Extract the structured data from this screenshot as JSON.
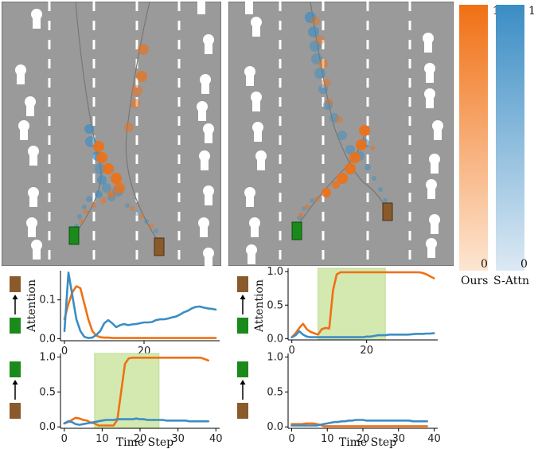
{
  "colors": {
    "ours": "#f07014",
    "s_attn": "#3b8dc4",
    "ego": "#1a8a1a",
    "other": "#8b5a2b",
    "road": "#9a9a9a",
    "highlight": "#cfe7a8"
  },
  "colorbar": {
    "ours_label": "Ours",
    "s_attn_label": "S-Attn",
    "ours_max": "1",
    "ours_min": "0",
    "s_attn_max": "1",
    "s_attn_min": "0"
  },
  "chart_data": [
    {
      "type": "line",
      "panel": "top-left",
      "ylabel": "Attention",
      "xlabel": "",
      "xlim": [
        -1,
        39
      ],
      "ylim": [
        -0.005,
        0.175
      ],
      "xticks": [
        "0",
        "20"
      ],
      "yticks": [
        "0.0",
        "0.1"
      ],
      "ytick_values": [
        0.0,
        0.1
      ],
      "xtick_values": [
        0,
        20
      ],
      "highlight": null,
      "series": [
        {
          "name": "Ours",
          "x": [
            0,
            1,
            2,
            3,
            4,
            5,
            6,
            7,
            8,
            9,
            10,
            11,
            12,
            13,
            14,
            15,
            16,
            17,
            18,
            19,
            20,
            21,
            22,
            23,
            24,
            25,
            26,
            27,
            28,
            29,
            30,
            31,
            32,
            33,
            34,
            35,
            36,
            37,
            38
          ],
          "values": [
            0.05,
            0.09,
            0.12,
            0.135,
            0.13,
            0.09,
            0.05,
            0.02,
            0.008,
            0.004,
            0.003,
            0.003,
            0.002,
            0.002,
            0.002,
            0.002,
            0.002,
            0.002,
            0.002,
            0.002,
            0.002,
            0.002,
            0.002,
            0.002,
            0.002,
            0.002,
            0.002,
            0.002,
            0.002,
            0.002,
            0.002,
            0.002,
            0.002,
            0.002,
            0.002,
            0.002,
            0.002,
            0.002,
            0.002
          ]
        },
        {
          "name": "S-Attn",
          "x": [
            0,
            1,
            2,
            3,
            4,
            5,
            6,
            7,
            8,
            9,
            10,
            11,
            12,
            13,
            14,
            15,
            16,
            17,
            18,
            19,
            20,
            21,
            22,
            23,
            24,
            25,
            26,
            27,
            28,
            29,
            30,
            31,
            32,
            33,
            34,
            35,
            36,
            37,
            38
          ],
          "values": [
            0.02,
            0.17,
            0.11,
            0.05,
            0.02,
            0.005,
            0.002,
            0.003,
            0.01,
            0.02,
            0.04,
            0.048,
            0.04,
            0.03,
            0.035,
            0.038,
            0.035,
            0.037,
            0.038,
            0.04,
            0.042,
            0.042,
            0.043,
            0.048,
            0.05,
            0.05,
            0.052,
            0.055,
            0.057,
            0.062,
            0.068,
            0.072,
            0.078,
            0.082,
            0.083,
            0.08,
            0.078,
            0.077,
            0.075
          ]
        }
      ]
    },
    {
      "type": "line",
      "panel": "top-right",
      "ylabel": "Attention",
      "xlabel": "",
      "xlim": [
        -1,
        39
      ],
      "ylim": [
        -0.02,
        1.05
      ],
      "xticks": [
        "0",
        "20"
      ],
      "yticks": [
        "0.0",
        "0.5",
        "1.0"
      ],
      "ytick_values": [
        0.0,
        0.5,
        1.0
      ],
      "xtick_values": [
        0,
        20
      ],
      "highlight": [
        7,
        25
      ],
      "series": [
        {
          "name": "Ours",
          "x": [
            0,
            1,
            2,
            3,
            4,
            5,
            6,
            7,
            8,
            9,
            10,
            11,
            12,
            13,
            14,
            15,
            16,
            17,
            18,
            19,
            20,
            21,
            22,
            23,
            24,
            25,
            26,
            27,
            28,
            29,
            30,
            31,
            32,
            33,
            34,
            35,
            36,
            37,
            38
          ],
          "values": [
            0.02,
            0.08,
            0.16,
            0.22,
            0.14,
            0.1,
            0.08,
            0.06,
            0.14,
            0.16,
            0.15,
            0.72,
            0.96,
            0.99,
            0.99,
            0.99,
            0.99,
            0.99,
            0.99,
            0.99,
            0.99,
            0.99,
            0.99,
            0.99,
            0.99,
            0.99,
            0.99,
            0.99,
            0.99,
            0.99,
            0.99,
            0.99,
            0.99,
            0.99,
            0.99,
            0.98,
            0.96,
            0.93,
            0.9
          ]
        },
        {
          "name": "S-Attn",
          "x": [
            0,
            1,
            2,
            3,
            4,
            5,
            6,
            7,
            8,
            9,
            10,
            11,
            12,
            13,
            14,
            15,
            16,
            17,
            18,
            19,
            20,
            21,
            22,
            23,
            24,
            25,
            26,
            27,
            28,
            29,
            30,
            31,
            32,
            33,
            34,
            35,
            36,
            37,
            38
          ],
          "values": [
            0.02,
            0.05,
            0.11,
            0.06,
            0.03,
            0.02,
            0.02,
            0.02,
            0.02,
            0.02,
            0.02,
            0.02,
            0.02,
            0.02,
            0.02,
            0.02,
            0.02,
            0.02,
            0.02,
            0.02,
            0.03,
            0.03,
            0.04,
            0.05,
            0.05,
            0.05,
            0.06,
            0.06,
            0.06,
            0.06,
            0.06,
            0.06,
            0.065,
            0.07,
            0.07,
            0.07,
            0.075,
            0.075,
            0.08
          ]
        }
      ]
    },
    {
      "type": "line",
      "panel": "bottom-left",
      "ylabel": "",
      "xlabel": "Time Step",
      "xlim": [
        -1,
        41
      ],
      "ylim": [
        -0.02,
        1.05
      ],
      "xticks": [
        "0",
        "10",
        "20",
        "30",
        "40"
      ],
      "yticks": [
        "0.0",
        "0.5",
        "1.0"
      ],
      "ytick_values": [
        0.0,
        0.5,
        1.0
      ],
      "xtick_values": [
        0,
        10,
        20,
        30,
        40
      ],
      "highlight": [
        8,
        25
      ],
      "series": [
        {
          "name": "Ours",
          "x": [
            0,
            1,
            2,
            3,
            4,
            5,
            6,
            7,
            8,
            9,
            10,
            11,
            12,
            13,
            14,
            15,
            16,
            17,
            18,
            19,
            20,
            21,
            22,
            23,
            24,
            25,
            26,
            27,
            28,
            29,
            30,
            31,
            32,
            33,
            34,
            35,
            36,
            37,
            38
          ],
          "values": [
            0.05,
            0.07,
            0.1,
            0.13,
            0.12,
            0.1,
            0.09,
            0.06,
            0.05,
            0.02,
            0.02,
            0.02,
            0.02,
            0.02,
            0.1,
            0.5,
            0.9,
            0.98,
            0.99,
            0.99,
            0.99,
            0.99,
            0.99,
            0.99,
            0.99,
            0.99,
            0.99,
            0.99,
            0.99,
            0.99,
            0.99,
            0.99,
            0.99,
            0.99,
            0.99,
            0.99,
            0.99,
            0.97,
            0.95
          ]
        },
        {
          "name": "S-Attn",
          "x": [
            0,
            1,
            2,
            3,
            4,
            5,
            6,
            7,
            8,
            9,
            10,
            11,
            12,
            13,
            14,
            15,
            16,
            17,
            18,
            19,
            20,
            21,
            22,
            23,
            24,
            25,
            26,
            27,
            28,
            29,
            30,
            31,
            32,
            33,
            34,
            35,
            36,
            37,
            38
          ],
          "values": [
            0.05,
            0.08,
            0.07,
            0.04,
            0.03,
            0.04,
            0.05,
            0.06,
            0.07,
            0.08,
            0.09,
            0.1,
            0.1,
            0.1,
            0.11,
            0.11,
            0.11,
            0.11,
            0.11,
            0.12,
            0.11,
            0.11,
            0.1,
            0.1,
            0.1,
            0.1,
            0.1,
            0.09,
            0.09,
            0.09,
            0.09,
            0.09,
            0.09,
            0.08,
            0.08,
            0.08,
            0.08,
            0.08,
            0.08
          ]
        }
      ]
    },
    {
      "type": "line",
      "panel": "bottom-right",
      "ylabel": "",
      "xlabel": "Time Step",
      "xlim": [
        -1,
        41
      ],
      "ylim": [
        -0.02,
        1.05
      ],
      "xticks": [
        "0",
        "10",
        "20",
        "30",
        "40"
      ],
      "yticks": [
        "0.0",
        "0.5",
        "1.0"
      ],
      "ytick_values": [
        0.0,
        0.5,
        1.0
      ],
      "xtick_values": [
        0,
        10,
        20,
        30,
        40
      ],
      "highlight": null,
      "series": [
        {
          "name": "Ours",
          "x": [
            0,
            1,
            2,
            3,
            4,
            5,
            6,
            7,
            8,
            9,
            10,
            11,
            12,
            13,
            14,
            15,
            16,
            17,
            18,
            19,
            20,
            21,
            22,
            23,
            24,
            25,
            26,
            27,
            28,
            29,
            30,
            31,
            32,
            33,
            34,
            35,
            36,
            37,
            38
          ],
          "values": [
            0.04,
            0.04,
            0.04,
            0.04,
            0.05,
            0.05,
            0.05,
            0.04,
            0.03,
            0.01,
            0.01,
            0.01,
            0.01,
            0.01,
            0.01,
            0.01,
            0.01,
            0.01,
            0.01,
            0.01,
            0.01,
            0.01,
            0.01,
            0.01,
            0.01,
            0.01,
            0.01,
            0.01,
            0.01,
            0.01,
            0.01,
            0.01,
            0.01,
            0.01,
            0.01,
            0.01,
            0.01,
            0.01,
            0.01
          ]
        },
        {
          "name": "S-Attn",
          "x": [
            0,
            1,
            2,
            3,
            4,
            5,
            6,
            7,
            8,
            9,
            10,
            11,
            12,
            13,
            14,
            15,
            16,
            17,
            18,
            19,
            20,
            21,
            22,
            23,
            24,
            25,
            26,
            27,
            28,
            29,
            30,
            31,
            32,
            33,
            34,
            35,
            36,
            37,
            38
          ],
          "values": [
            0.02,
            0.02,
            0.02,
            0.02,
            0.02,
            0.02,
            0.02,
            0.02,
            0.03,
            0.04,
            0.05,
            0.06,
            0.07,
            0.07,
            0.08,
            0.08,
            0.09,
            0.09,
            0.1,
            0.1,
            0.1,
            0.09,
            0.09,
            0.09,
            0.09,
            0.09,
            0.09,
            0.09,
            0.09,
            0.09,
            0.09,
            0.09,
            0.09,
            0.09,
            0.08,
            0.08,
            0.08,
            0.08,
            0.08
          ]
        }
      ]
    }
  ]
}
